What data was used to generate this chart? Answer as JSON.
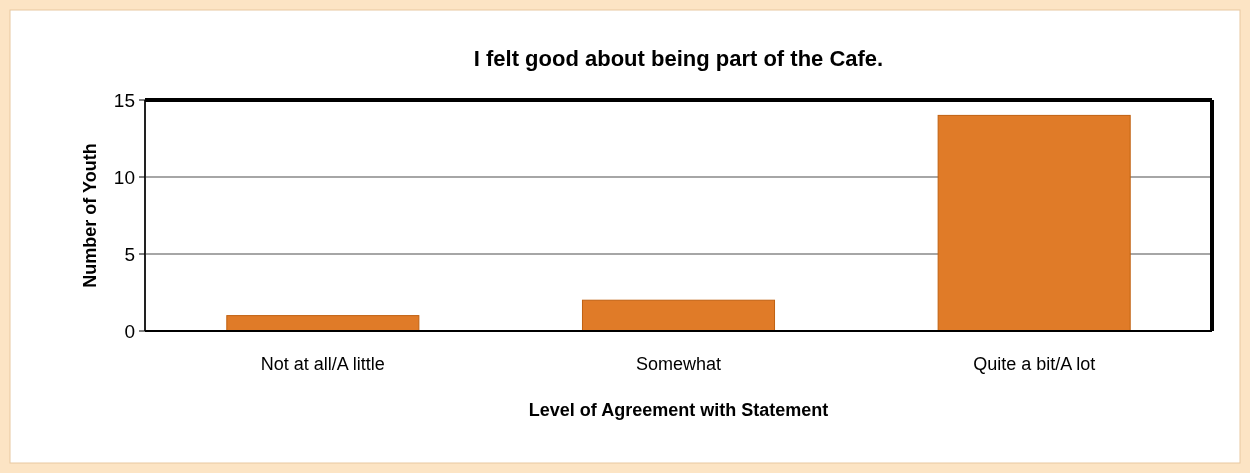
{
  "chart_data": {
    "type": "bar",
    "title": "I felt good about being part of the Cafe.",
    "xlabel": "Level of Agreement with Statement",
    "ylabel": "Number of Youth",
    "categories": [
      "Not at all/A little",
      "Somewhat",
      "Quite a bit/A lot"
    ],
    "values": [
      1,
      2,
      14
    ],
    "color": "#e07b28",
    "ylim": [
      0,
      15
    ],
    "yticks": [
      0,
      5,
      10,
      15
    ],
    "grid": "y"
  }
}
